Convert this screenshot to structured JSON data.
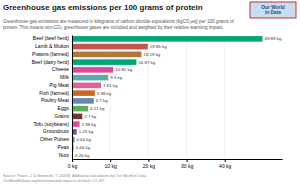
{
  "chart_data": {
    "type": "bar",
    "orientation": "horizontal",
    "title": "Greenhouse gas emissions per 100 grams of protein",
    "subtitle": "Greenhouse gas emissions are measured in kilograms of carbon dioxide equivalents (kgCO₂eq) per 100 grams of\nprotein. This means non-CO₂ greenhouse gases are included and weighted by their relative warming impact.",
    "annotations": [
      "Source: Poore, J. & Nemecek, T. (2018). Additional calculations by Our World in Data.\nOurWorldInData.org/environmental-impacts-of-food • CC BY",
      "Our World\nin Data"
    ],
    "categories": [
      "Beef (beef herd)",
      "Lamb & Mutton",
      "Prawns (farmed)",
      "Beef (dairy herd)",
      "Cheese",
      "Milk",
      "Pig Meat",
      "Fish (farmed)",
      "Poultry Meat",
      "Eggs",
      "Grains",
      "Tofu (soybeans)",
      "Groundnuts",
      "Other Pulses",
      "Peas",
      "Nuts"
    ],
    "values": [
      49.89,
      19.85,
      18.19,
      16.87,
      10.82,
      9.5,
      7.61,
      5.98,
      5.7,
      4.21,
      2.7,
      1.98,
      1.23,
      0.64,
      0.44,
      0.26
    ],
    "value_labels": [
      "49.89 kg",
      "19.85 kg",
      "18.19 kg",
      "16.87 kg",
      "10.82 kg",
      "9.5 kg",
      "7.61 kg",
      "5.98 kg",
      "5.7 kg",
      "4.21 kg",
      "2.7 kg",
      "1.98 kg",
      "1.23 kg",
      "0.64 kg",
      "0.44 kg",
      "0.26 kg"
    ],
    "data_labels": true,
    "colors": [
      "#00a878",
      "#c0544e",
      "#b5763a",
      "#00a878",
      "#e0489a",
      "#5aacaa",
      "#e0609a",
      "#c96a20",
      "#6a85b0",
      "#5ab05a",
      "#7a3030",
      "#e0489a",
      "#7050a0",
      "#30a090",
      "#e07840",
      "#9090a8"
    ],
    "xlim": [
      0,
      55
    ],
    "xticks": [
      {
        "value": 0,
        "label": "0 kg"
      },
      {
        "value": 10,
        "label": "10 kg"
      },
      {
        "value": 20,
        "label": "20 kg"
      },
      {
        "value": 30,
        "label": "30 kg"
      },
      {
        "value": 40,
        "label": "40 kg"
      }
    ],
    "grid": true
  }
}
